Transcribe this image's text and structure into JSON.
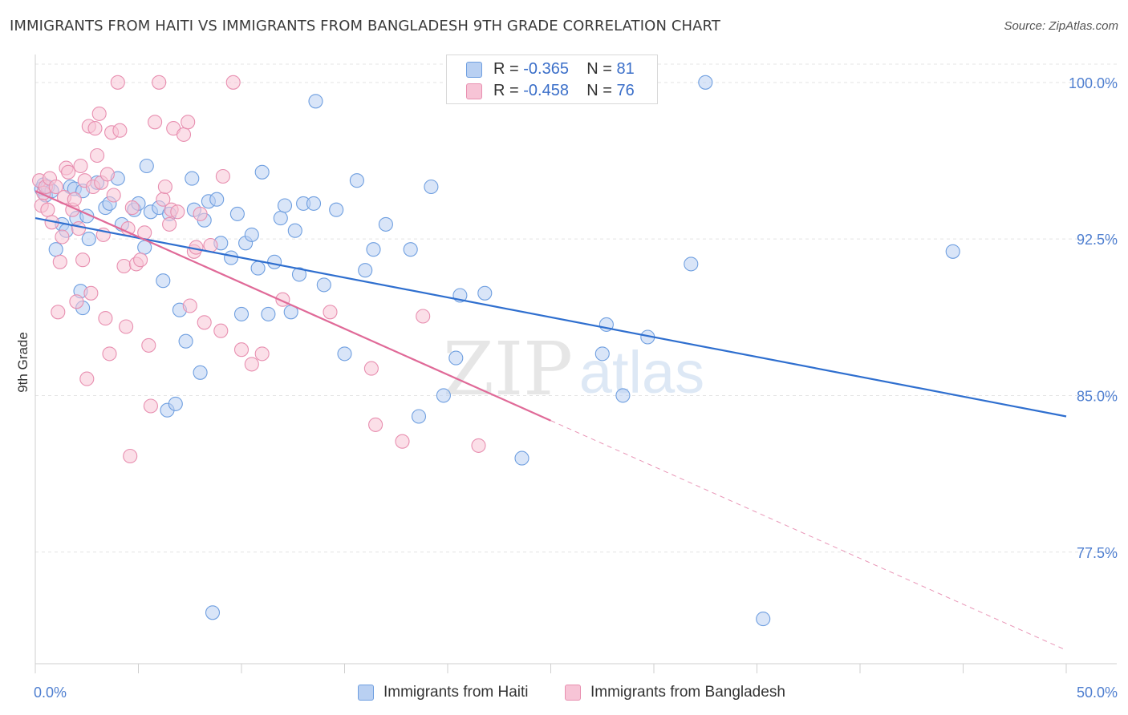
{
  "title": "IMMIGRANTS FROM HAITI VS IMMIGRANTS FROM BANGLADESH 9TH GRADE CORRELATION CHART",
  "source": "Source: ZipAtlas.com",
  "watermark": {
    "zip": "ZIP",
    "atlas": "atlas"
  },
  "chart_data": {
    "type": "scatter",
    "ylabel": "9th Grade",
    "xlim": [
      0,
      50
    ],
    "ylim": [
      71.5,
      100.8
    ],
    "x_tick_labels": [
      "0.0%",
      "50.0%"
    ],
    "y_ticks": [
      77.5,
      85.0,
      92.5,
      100.0
    ],
    "y_tick_labels": [
      "77.5%",
      "85.0%",
      "92.5%",
      "100.0%"
    ],
    "grid": "horizontal dashed",
    "legend_stats": [
      {
        "r_label": "R = ",
        "r_value": "-0.365",
        "n_label": "N = ",
        "n_value": "81"
      },
      {
        "r_label": "R = ",
        "r_value": "-0.458",
        "n_label": "N = ",
        "n_value": "76"
      }
    ],
    "series": [
      {
        "name": "Immigrants from Haiti",
        "color": "#6f9fe0",
        "fill": "#b9d0f2",
        "line_color": "#2f6fcf",
        "trend": {
          "x0": 0,
          "y0": 93.5,
          "x1": 50,
          "y1": 84.0
        },
        "points": [
          [
            0.3,
            94.9
          ],
          [
            0.4,
            95.1
          ],
          [
            0.5,
            94.6
          ],
          [
            0.6,
            95.0
          ],
          [
            0.8,
            94.8
          ],
          [
            1.0,
            92.0
          ],
          [
            1.3,
            93.2
          ],
          [
            1.5,
            92.9
          ],
          [
            1.7,
            95.0
          ],
          [
            1.9,
            94.9
          ],
          [
            2.0,
            93.5
          ],
          [
            2.2,
            90.0
          ],
          [
            2.3,
            89.2
          ],
          [
            2.3,
            94.8
          ],
          [
            2.5,
            93.6
          ],
          [
            2.6,
            92.5
          ],
          [
            3.0,
            95.2
          ],
          [
            3.4,
            94.0
          ],
          [
            3.6,
            94.2
          ],
          [
            4.0,
            95.4
          ],
          [
            4.2,
            93.2
          ],
          [
            4.8,
            93.9
          ],
          [
            5.0,
            94.2
          ],
          [
            5.3,
            92.1
          ],
          [
            5.4,
            96.0
          ],
          [
            5.6,
            93.8
          ],
          [
            6.0,
            94.0
          ],
          [
            6.2,
            90.5
          ],
          [
            6.4,
            84.3
          ],
          [
            6.5,
            93.7
          ],
          [
            6.8,
            84.6
          ],
          [
            7.0,
            89.1
          ],
          [
            7.3,
            87.6
          ],
          [
            7.6,
            95.4
          ],
          [
            7.7,
            93.9
          ],
          [
            8.0,
            86.1
          ],
          [
            8.2,
            93.4
          ],
          [
            8.4,
            94.3
          ],
          [
            8.6,
            74.6
          ],
          [
            8.8,
            94.4
          ],
          [
            9.0,
            92.3
          ],
          [
            9.5,
            91.6
          ],
          [
            9.8,
            93.7
          ],
          [
            10.0,
            88.9
          ],
          [
            10.2,
            92.3
          ],
          [
            10.5,
            92.7
          ],
          [
            10.8,
            91.1
          ],
          [
            11.0,
            95.7
          ],
          [
            11.3,
            88.9
          ],
          [
            11.6,
            91.4
          ],
          [
            11.9,
            93.5
          ],
          [
            12.1,
            94.1
          ],
          [
            12.6,
            92.9
          ],
          [
            12.8,
            90.8
          ],
          [
            13.0,
            94.2
          ],
          [
            13.5,
            94.2
          ],
          [
            13.6,
            99.1
          ],
          [
            14.0,
            90.3
          ],
          [
            14.6,
            93.9
          ],
          [
            15.0,
            87.0
          ],
          [
            15.6,
            95.3
          ],
          [
            16.0,
            91.0
          ],
          [
            16.4,
            92.0
          ],
          [
            17.0,
            93.2
          ],
          [
            18.2,
            92.0
          ],
          [
            18.6,
            84.0
          ],
          [
            19.2,
            95.0
          ],
          [
            19.8,
            85.0
          ],
          [
            20.4,
            86.8
          ],
          [
            20.6,
            89.8
          ],
          [
            21.8,
            89.9
          ],
          [
            23.6,
            82.0
          ],
          [
            27.7,
            88.4
          ],
          [
            27.5,
            87.0
          ],
          [
            28.5,
            85.0
          ],
          [
            29.7,
            87.8
          ],
          [
            31.8,
            91.3
          ],
          [
            32.5,
            100.0
          ],
          [
            35.3,
            74.3
          ],
          [
            44.5,
            91.9
          ],
          [
            12.4,
            89.0
          ]
        ]
      },
      {
        "name": "Immigrants from Bangladesh",
        "color": "#e88fb0",
        "fill": "#f7c4d6",
        "line_color": "#e06a98",
        "trend": {
          "x0": 0,
          "y0": 94.8,
          "x1": 25,
          "y1": 83.8
        },
        "trend_ext": {
          "x0": 25,
          "y0": 83.8,
          "x1": 50,
          "y1": 72.8
        },
        "points": [
          [
            0.2,
            95.3
          ],
          [
            0.3,
            94.1
          ],
          [
            0.4,
            94.7
          ],
          [
            0.5,
            95.0
          ],
          [
            0.6,
            93.9
          ],
          [
            0.7,
            95.4
          ],
          [
            0.8,
            93.3
          ],
          [
            1.0,
            95.0
          ],
          [
            1.1,
            89.0
          ],
          [
            1.2,
            91.4
          ],
          [
            1.3,
            92.6
          ],
          [
            1.4,
            94.5
          ],
          [
            1.5,
            95.9
          ],
          [
            1.6,
            95.7
          ],
          [
            1.8,
            93.9
          ],
          [
            1.9,
            94.4
          ],
          [
            2.0,
            89.5
          ],
          [
            2.1,
            93.0
          ],
          [
            2.2,
            96.0
          ],
          [
            2.3,
            91.5
          ],
          [
            2.4,
            95.3
          ],
          [
            2.5,
            85.8
          ],
          [
            2.6,
            97.9
          ],
          [
            2.7,
            89.9
          ],
          [
            2.8,
            95.0
          ],
          [
            2.9,
            97.8
          ],
          [
            3.0,
            96.5
          ],
          [
            3.1,
            98.5
          ],
          [
            3.2,
            95.2
          ],
          [
            3.3,
            92.7
          ],
          [
            3.4,
            88.7
          ],
          [
            3.5,
            95.6
          ],
          [
            3.6,
            87.0
          ],
          [
            3.7,
            97.6
          ],
          [
            3.8,
            94.6
          ],
          [
            4.0,
            100.0
          ],
          [
            4.1,
            97.7
          ],
          [
            4.3,
            91.2
          ],
          [
            4.4,
            88.3
          ],
          [
            4.5,
            93.0
          ],
          [
            4.6,
            82.1
          ],
          [
            4.7,
            94.0
          ],
          [
            4.9,
            91.3
          ],
          [
            5.1,
            91.5
          ],
          [
            5.3,
            92.8
          ],
          [
            5.5,
            87.4
          ],
          [
            5.6,
            84.5
          ],
          [
            5.8,
            98.1
          ],
          [
            6.0,
            100.0
          ],
          [
            6.2,
            94.4
          ],
          [
            6.3,
            95.0
          ],
          [
            6.5,
            93.2
          ],
          [
            6.6,
            93.9
          ],
          [
            6.7,
            97.8
          ],
          [
            6.9,
            93.8
          ],
          [
            7.2,
            97.5
          ],
          [
            7.4,
            98.1
          ],
          [
            7.5,
            89.3
          ],
          [
            7.7,
            91.9
          ],
          [
            7.8,
            92.1
          ],
          [
            8.0,
            93.7
          ],
          [
            8.2,
            88.5
          ],
          [
            8.5,
            92.2
          ],
          [
            9.0,
            88.1
          ],
          [
            9.1,
            95.5
          ],
          [
            9.6,
            100.0
          ],
          [
            10.0,
            87.2
          ],
          [
            10.5,
            86.5
          ],
          [
            11.0,
            87.0
          ],
          [
            12.0,
            89.6
          ],
          [
            14.3,
            89.0
          ],
          [
            16.3,
            86.3
          ],
          [
            16.5,
            83.6
          ],
          [
            17.8,
            82.8
          ],
          [
            18.8,
            88.8
          ],
          [
            21.5,
            82.6
          ]
        ]
      }
    ]
  },
  "bottom_legend": [
    {
      "label": "Immigrants from Haiti"
    },
    {
      "label": "Immigrants from Bangladesh"
    }
  ]
}
